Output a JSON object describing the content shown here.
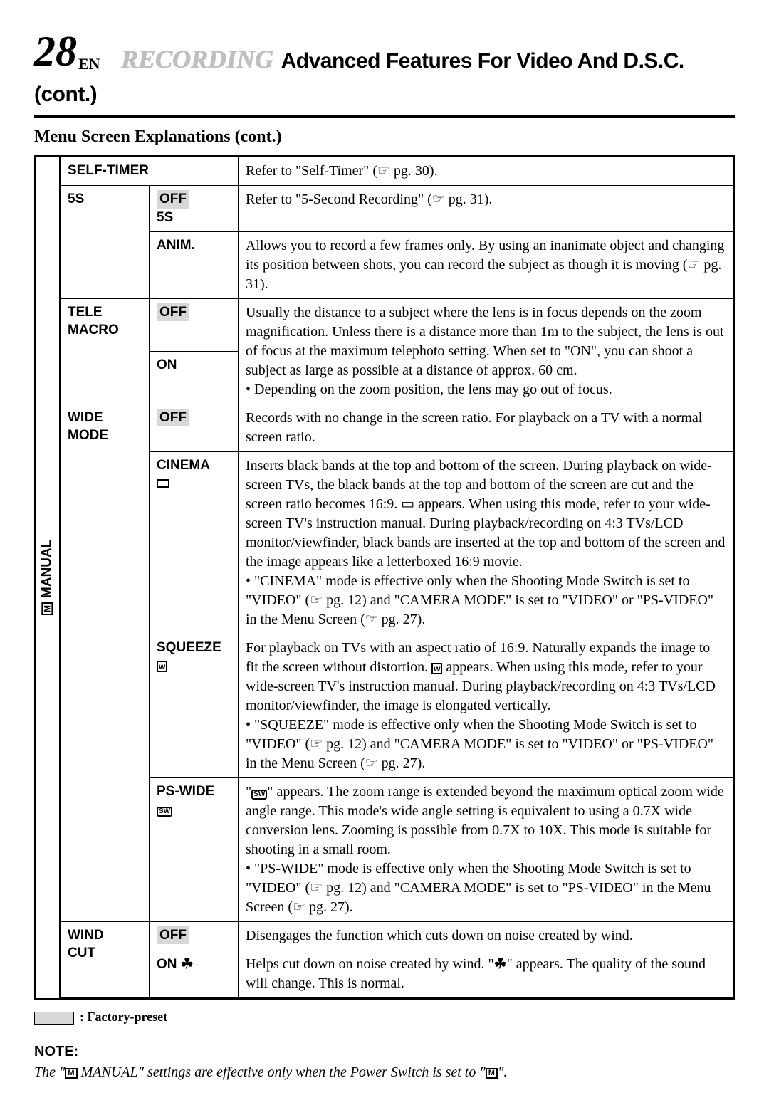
{
  "header": {
    "page_number": "28",
    "lang": "EN",
    "section": "RECORDING",
    "title": "Advanced Features For Video And D.S.C. (cont.)"
  },
  "subtitle": "Menu Screen Explanations (cont.)",
  "side_label": "MANUAL",
  "rows": {
    "self_timer_label": "SELF-TIMER",
    "self_timer_desc": "Refer to \"Self-Timer\" (☞ pg. 30).",
    "fives_label": "5S",
    "fives_off": "OFF",
    "fives_5s": "5S",
    "fives_off_desc": "Refer to \"5-Second Recording\" (☞ pg. 31).",
    "fives_anim": "ANIM.",
    "fives_anim_desc": "Allows you to record a few frames only. By using an inanimate object and changing its position between shots, you can record the subject as though it is moving (☞ pg. 31).",
    "tele_label1": "TELE",
    "tele_label2": "MACRO",
    "tele_off": "OFF",
    "tele_on": "ON",
    "tele_desc": "Usually the distance to a subject where the lens is in focus depends on the zoom magnification. Unless there is a distance more than 1m to the subject, the lens is out of focus at the maximum telephoto setting. When set to \"ON\", you can shoot a subject as large as possible at a distance of approx. 60 cm.\n• Depending on the zoom position, the lens may go out of focus.",
    "wide_label1": "WIDE",
    "wide_label2": "MODE",
    "wide_off": "OFF",
    "wide_off_desc": "Records with no change in the screen ratio. For playback on a TV with a normal screen ratio.",
    "wide_cinema": "CINEMA",
    "wide_cinema_desc": "Inserts black bands at the top and bottom of the screen. During playback on wide-screen TVs, the black bands at the top and bottom of the screen are cut and the screen ratio becomes 16:9. ▭ appears. When using this mode, refer to your wide-screen TV's instruction manual. During playback/recording on 4:3 TVs/LCD monitor/viewfinder, black bands are inserted at the top and bottom of the screen and the image appears like a letterboxed 16:9 movie.\n• \"CINEMA\" mode is effective only when the Shooting Mode Switch is set to \"VIDEO\" (☞ pg. 12) and \"CAMERA MODE\" is set to \"VIDEO\" or \"PS-VIDEO\" in the Menu Screen (☞ pg. 27).",
    "wide_squeeze": "SQUEEZE",
    "wide_squeeze_desc_a": "For playback on TVs with an aspect ratio of 16:9. Naturally expands the image to fit the screen without distortion. ",
    "wide_squeeze_desc_b": " appears. When using this mode, refer to your wide-screen TV's instruction manual. During playback/recording on 4:3 TVs/LCD monitor/viewfinder, the image is elongated vertically.\n• \"SQUEEZE\" mode is effective only when the Shooting Mode Switch is set to \"VIDEO\" (☞ pg. 12) and \"CAMERA MODE\" is set to \"VIDEO\" or \"PS-VIDEO\" in the Menu Screen (☞ pg. 27).",
    "wide_ps": "PS-WIDE",
    "wide_ps_desc_a": "\"",
    "wide_ps_desc_b": "\" appears. The zoom range is extended beyond the maximum optical zoom wide angle range. This mode's wide angle setting is equivalent to using a 0.7X wide conversion lens. Zooming is possible from 0.7X to 10X. This mode is suitable for shooting in a small room.\n• \"PS-WIDE\" mode is effective only when the Shooting Mode Switch is set to \"VIDEO\" (☞ pg. 12) and \"CAMERA MODE\" is set to \"PS-VIDEO\" in the Menu Screen (☞ pg. 27).",
    "wind_label1": "WIND",
    "wind_label2": "CUT",
    "wind_off": "OFF",
    "wind_off_desc": "Disengages the function which cuts down on noise created by wind.",
    "wind_on": "ON",
    "wind_on_desc_a": "Helps cut down on noise created by wind. \"",
    "wind_on_desc_b": "\" appears. The quality of the sound will change. This is normal."
  },
  "legend": ": Factory-preset",
  "note_head": "NOTE:",
  "note_body_a": "The \"",
  "note_body_b": " MANUAL\" settings are effective only when the Power Switch is set to \"",
  "note_body_c": "\"."
}
